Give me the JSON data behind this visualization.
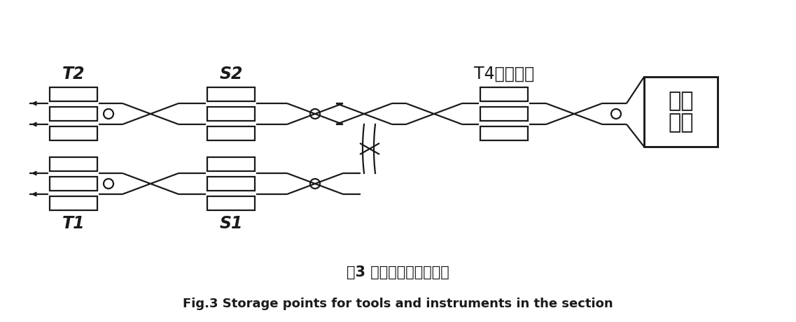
{
  "title_zh": "图3 区间内工器具存放点",
  "title_en": "Fig.3 Storage points for tools and instruments in the section",
  "bg_color": "#ffffff",
  "lc": "#1a1a1a",
  "lw": 1.6,
  "fig_w": 11.37,
  "fig_h": 4.61,
  "label_T2": "T2",
  "label_S2": "S2",
  "label_T4": "T4（预留）",
  "label_T1": "T1",
  "label_S1": "S1",
  "label_depot_1": "车辆",
  "label_depot_2": "基地"
}
